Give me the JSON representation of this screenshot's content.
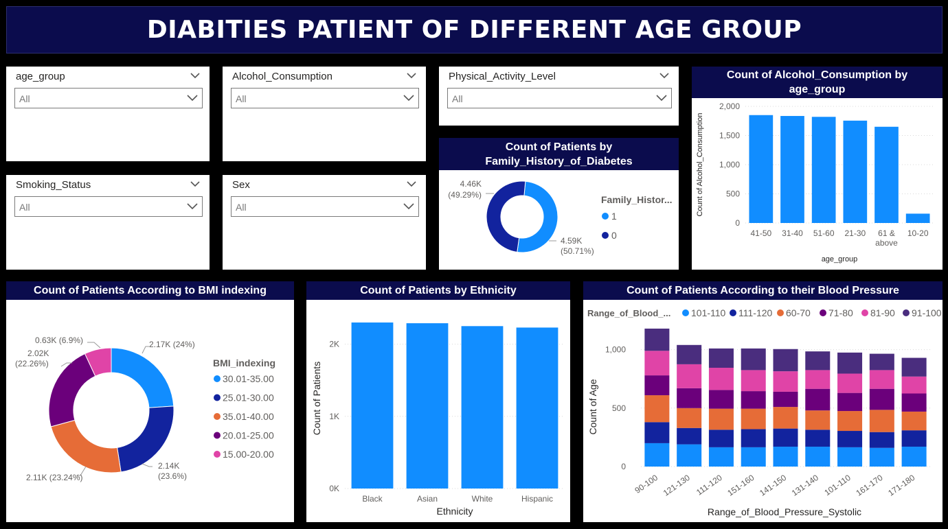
{
  "title": "DIABITIES PATIENT OF DIFFERENT AGE GROUP",
  "slicers": [
    {
      "id": "age-group",
      "label": "age_group",
      "value": "All"
    },
    {
      "id": "alcohol",
      "label": "Alcohol_Consumption",
      "value": "All"
    },
    {
      "id": "activity",
      "label": "Physical_Activity_Level",
      "value": "All"
    },
    {
      "id": "smoking",
      "label": "Smoking_Status",
      "value": "All"
    },
    {
      "id": "sex",
      "label": "Sex",
      "value": "All"
    }
  ],
  "colors": {
    "header_bg": "#0b0c4d",
    "blue": "#118dff",
    "navy": "#12239e",
    "orange": "#e66c37",
    "purple": "#6b007b",
    "pink": "#e044a7",
    "violet": "#4a2d7e"
  },
  "chart_data": [
    {
      "id": "alcohol_by_age",
      "type": "bar",
      "title": "Count of Alcohol_Consumption by age_group",
      "xlabel": "age_group",
      "ylabel": "Count of Alcohol_Consumption",
      "categories": [
        "41-50",
        "31-40",
        "51-60",
        "21-30",
        "61 & above",
        "10-20"
      ],
      "values": [
        1850,
        1835,
        1820,
        1755,
        1650,
        160
      ],
      "ylim": [
        0,
        2000
      ],
      "yticks": [
        "0",
        "500",
        "1,000",
        "1,500",
        "2,000"
      ],
      "grid": true
    },
    {
      "id": "family_history",
      "type": "pie",
      "donut": true,
      "title": "Count of Patients by Family_History_of_Diabetes",
      "legend_title": "Family_Histor...",
      "legend_position": "right",
      "slices": [
        {
          "label": "1",
          "value": 4590,
          "text": "4.59K",
          "pct": "(50.71%)"
        },
        {
          "label": "0",
          "value": 4460,
          "text": "4.46K",
          "pct": "(49.29%)"
        }
      ]
    },
    {
      "id": "bmi",
      "type": "pie",
      "donut": true,
      "title": "Count of Patients According to BMI indexing",
      "legend_title": "BMI_indexing",
      "legend_position": "right",
      "slices": [
        {
          "label": "30.01-35.00",
          "value": 2170,
          "text": "2.17K (24%)"
        },
        {
          "label": "25.01-30.00",
          "value": 2140,
          "text": "2.14K",
          "pct": "(23.6%)"
        },
        {
          "label": "35.01-40.00",
          "value": 2110,
          "text": "2.11K (23.24%)"
        },
        {
          "label": "20.01-25.00",
          "value": 2020,
          "text": "2.02K",
          "pct": "(22.26%)"
        },
        {
          "label": "15.00-20.00",
          "value": 630,
          "text": "0.63K (6.9%)"
        }
      ]
    },
    {
      "id": "ethnicity",
      "type": "bar",
      "title": "Count of Patients by Ethnicity",
      "xlabel": "Ethnicity",
      "ylabel": "Count of Patients",
      "categories": [
        "Black",
        "Asian",
        "White",
        "Hispanic"
      ],
      "values": [
        2300,
        2290,
        2250,
        2230
      ],
      "ylim": [
        0,
        2500
      ],
      "yticks": [
        "0K",
        "1K",
        "2K"
      ],
      "grid": true
    },
    {
      "id": "blood_pressure",
      "type": "bar",
      "stacked": true,
      "title": "Count of Patients According to their Blood Pressure",
      "xlabel": "Range_of_Blood_Pressure_Systolic",
      "ylabel": "Count of Age",
      "legend_title": "Range_of_Blood_...",
      "legend_position": "top",
      "categories": [
        "90-100",
        "121-130",
        "111-120",
        "151-160",
        "141-150",
        "131-140",
        "101-110",
        "161-170",
        "171-180"
      ],
      "series": [
        {
          "name": "101-110",
          "values": [
            200,
            190,
            165,
            165,
            170,
            170,
            165,
            160,
            170
          ]
        },
        {
          "name": "111-120",
          "values": [
            180,
            140,
            150,
            155,
            155,
            145,
            140,
            135,
            140
          ]
        },
        {
          "name": "60-70",
          "values": [
            230,
            170,
            180,
            175,
            185,
            165,
            170,
            190,
            160
          ]
        },
        {
          "name": "71-80",
          "values": [
            170,
            170,
            160,
            150,
            130,
            185,
            155,
            180,
            155
          ]
        },
        {
          "name": "81-90",
          "values": [
            210,
            205,
            190,
            180,
            175,
            160,
            165,
            160,
            145
          ]
        },
        {
          "name": "91-100",
          "values": [
            190,
            165,
            165,
            185,
            190,
            160,
            180,
            140,
            160
          ]
        }
      ],
      "ylim": [
        0,
        1250
      ],
      "yticks": [
        "0",
        "500",
        "1,000"
      ],
      "grid": true
    }
  ]
}
